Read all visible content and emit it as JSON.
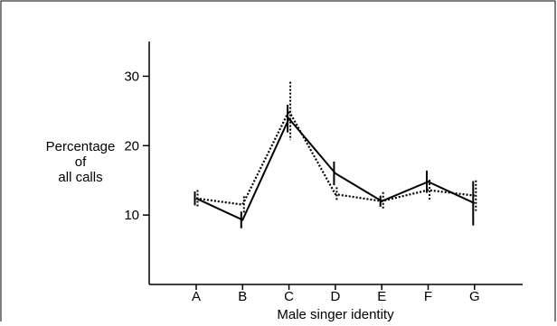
{
  "chart_data": {
    "type": "line",
    "title": "",
    "xlabel": "Male singer identity",
    "ylabel": [
      "Percentage",
      "of",
      "all calls"
    ],
    "categories": [
      "A",
      "B",
      "C",
      "D",
      "E",
      "F",
      "G"
    ],
    "yticks": [
      10,
      20,
      30
    ],
    "ylim": [
      0,
      35
    ],
    "grid": false,
    "series": [
      {
        "style": "solid",
        "values": [
          12.4,
          9.3,
          23.9,
          16.0,
          12.0,
          14.8,
          11.7
        ],
        "error": [
          1.0,
          1.2,
          2.0,
          1.7,
          0.8,
          1.6,
          3.2
        ]
      },
      {
        "style": "dotted",
        "values": [
          12.4,
          11.5,
          25.0,
          13.0,
          12.0,
          13.6,
          12.8
        ],
        "error": [
          1.2,
          1.2,
          4.2,
          1.0,
          1.3,
          1.5,
          2.2
        ]
      }
    ]
  }
}
